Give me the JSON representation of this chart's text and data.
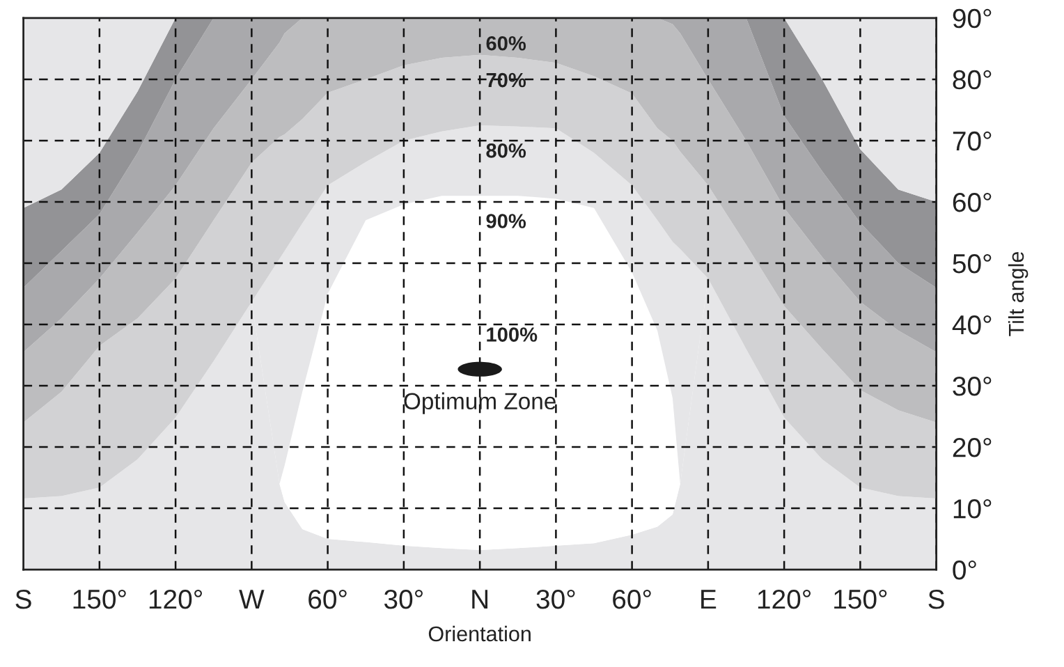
{
  "chart_data": {
    "type": "area",
    "stacked": true,
    "xlabel": "Orientation",
    "ylabel": "Tilt angle",
    "x": [
      -180,
      -165,
      -150,
      -135,
      -120,
      -105,
      -90,
      -79,
      -77,
      -70,
      -60,
      -45,
      -30,
      -15,
      0,
      15,
      30,
      45,
      60,
      70,
      76,
      79,
      90,
      105,
      120,
      135,
      150,
      165,
      180
    ],
    "series": [
      {
        "color": "#e6e6e8",
        "values": [
          11.6,
          12,
          13.4,
          18,
          24.8,
          34,
          43.7,
          14,
          11,
          6.6,
          5,
          4.5,
          3.9,
          3.5,
          3.2,
          3.5,
          3.9,
          4.3,
          5.7,
          7,
          9,
          14,
          47.5,
          36,
          24.8,
          18,
          13.4,
          12,
          11.6
        ]
      },
      {
        "name": "90%",
        "color": "#ffffff",
        "values": [
          0,
          0,
          0,
          0,
          0,
          0,
          0,
          0,
          6,
          22.4,
          40,
          52.5,
          55.7,
          57.5,
          57.8,
          57.5,
          56.6,
          54.7,
          42.8,
          32,
          19,
          0,
          0,
          0,
          0,
          0,
          0,
          0,
          0
        ]
      },
      {
        "name": "80%",
        "color": "#e6e6e8",
        "values": [
          0,
          0,
          0,
          0,
          0,
          0,
          0,
          36.7,
          35,
          27.5,
          17.7,
          9.5,
          10.4,
          10.5,
          11.5,
          11.3,
          11.5,
          9,
          14.2,
          18,
          25.5,
          38.3,
          0,
          0,
          0,
          0,
          0,
          0,
          0
        ]
      },
      {
        "name": "70%",
        "color": "#d2d2d4",
        "values": [
          12.4,
          17,
          23.1,
          23,
          22.7,
          23,
          22.7,
          19.9,
          19,
          17,
          15.1,
          13.5,
          12.3,
          12,
          11.5,
          11.2,
          10.7,
          12.5,
          15,
          15,
          16.5,
          15.9,
          15.2,
          17,
          18.2,
          18,
          15.9,
          14,
          12.4
        ]
      },
      {
        "name": "60%",
        "color": "#bdbdbf",
        "values": [
          11.5,
          12,
          11,
          14,
          15.2,
          15,
          13.6,
          15.4,
          16.5,
          16.5,
          12.2,
          10,
          7.7,
          6.5,
          6,
          6.5,
          7.3,
          9.5,
          12.3,
          18,
          19,
          19.3,
          17.3,
          17,
          16,
          15,
          14.4,
          13,
          11.5
        ]
      },
      {
        "color": "#a9a9ac",
        "values": [
          10.5,
          11,
          10.5,
          13,
          17.3,
          18,
          10,
          4,
          2.5,
          0,
          0,
          0,
          0,
          0,
          0,
          0,
          0,
          0,
          0,
          0,
          1,
          2.5,
          10,
          20,
          15,
          14,
          12.9,
          11,
          10.5
        ]
      },
      {
        "color": "#939396",
        "values": [
          13,
          10,
          10,
          10,
          10,
          0,
          0,
          0,
          0,
          0,
          0,
          0,
          0,
          0,
          0,
          0,
          0,
          0,
          0,
          0,
          0,
          0,
          0,
          0,
          16,
          15,
          12,
          12,
          14
        ]
      },
      {
        "color": "#e6e6e8",
        "values": [
          31,
          28,
          22,
          12,
          0,
          0,
          0,
          0,
          0,
          0,
          0,
          0,
          0,
          0,
          0,
          0,
          0,
          0,
          0,
          0,
          0,
          0,
          0,
          0,
          0,
          10,
          21.4,
          28,
          30
        ]
      },
      {
        "type": "scatter",
        "name": "Optimum Zone",
        "x": [
          0
        ],
        "values": [
          32.7
        ],
        "color": "#1a1a1a",
        "marker": "circle"
      }
    ],
    "annotations": [
      {
        "text": "100%",
        "x": 0,
        "y": 32.7
      }
    ],
    "xlim": [
      -180,
      180
    ],
    "xticks": [
      {
        "value": -180,
        "label": "S"
      },
      {
        "value": -150,
        "label": "150°"
      },
      {
        "value": -120,
        "label": "120°"
      },
      {
        "value": -90,
        "label": "W"
      },
      {
        "value": -60,
        "label": "60°"
      },
      {
        "value": -30,
        "label": "30°"
      },
      {
        "value": 0,
        "label": "N"
      },
      {
        "value": 30,
        "label": "30°"
      },
      {
        "value": 60,
        "label": "60°"
      },
      {
        "value": 90,
        "label": "E"
      },
      {
        "value": 120,
        "label": "120°"
      },
      {
        "value": 150,
        "label": "150°"
      },
      {
        "value": 180,
        "label": "S"
      }
    ],
    "ylim": [
      0,
      90
    ],
    "yticks": [
      {
        "value": 0,
        "label": "0°"
      },
      {
        "value": 10,
        "label": "10°"
      },
      {
        "value": 20,
        "label": "20°"
      },
      {
        "value": 30,
        "label": "30°"
      },
      {
        "value": 40,
        "label": "40°"
      },
      {
        "value": 50,
        "label": "50°"
      },
      {
        "value": 60,
        "label": "60°"
      },
      {
        "value": 70,
        "label": "70°"
      },
      {
        "value": 80,
        "label": "80°"
      },
      {
        "value": 90,
        "label": "90°"
      }
    ],
    "grid": true,
    "line_style": "dashed"
  }
}
